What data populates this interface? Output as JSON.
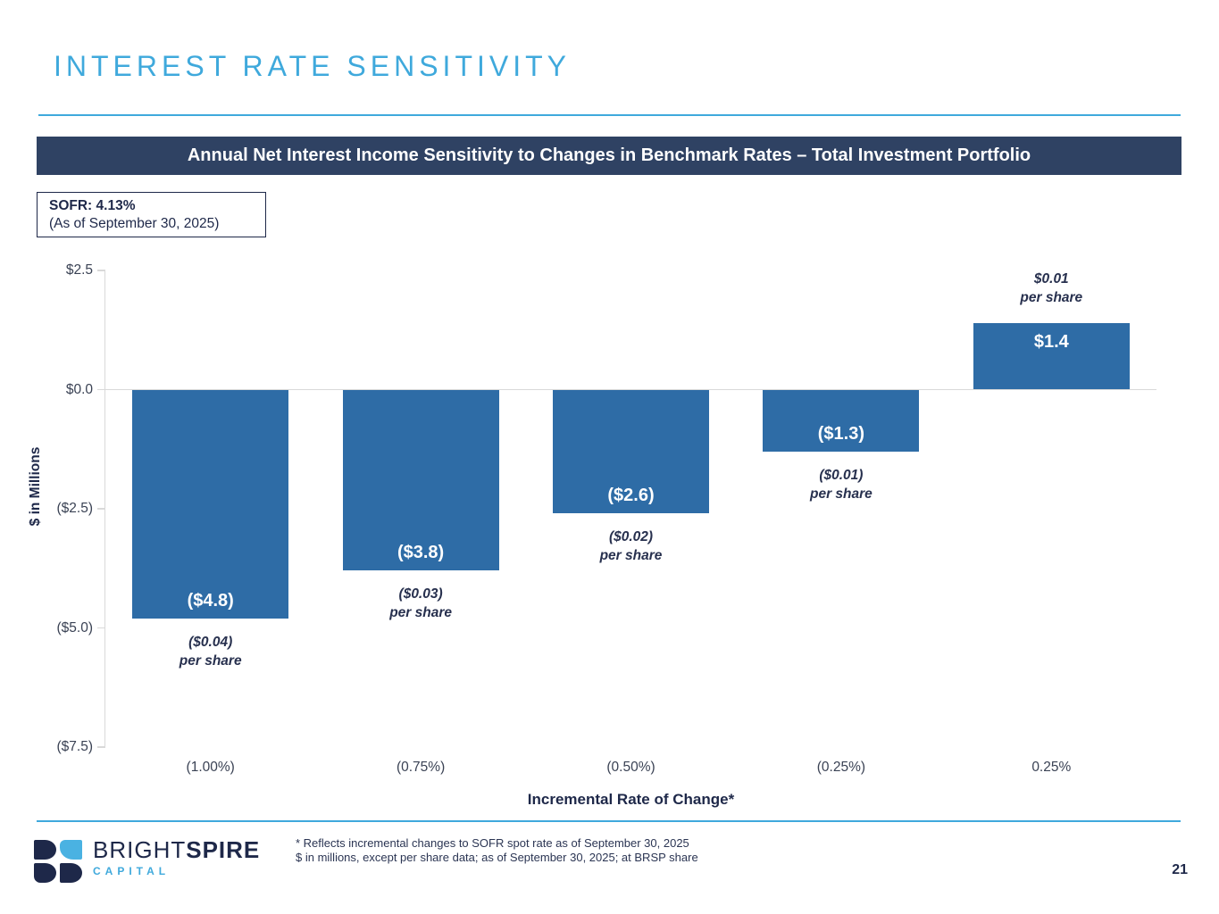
{
  "slide": {
    "title": "INTEREST RATE SENSITIVITY",
    "page_number": "21"
  },
  "banner": {
    "text": "Annual Net Interest Income Sensitivity to Changes in Benchmark Rates – Total Investment Portfolio"
  },
  "sofr_box": {
    "line1": "SOFR: 4.13%",
    "line2": "(As of September 30, 2025)"
  },
  "chart_data": {
    "type": "bar",
    "title": "Annual Net Interest Income Sensitivity to Changes in Benchmark Rates – Total Investment Portfolio",
    "categories": [
      "(1.00%)",
      "(0.75%)",
      "(0.50%)",
      "(0.25%)",
      "0.25%"
    ],
    "values": [
      -4.8,
      -3.8,
      -2.6,
      -1.3,
      1.4
    ],
    "bar_labels": [
      "($4.8)",
      "($3.8)",
      "($2.6)",
      "($1.3)",
      "$1.4"
    ],
    "per_share_labels": [
      {
        "line1": "($0.04)",
        "line2": "per share",
        "position": "below"
      },
      {
        "line1": "($0.03)",
        "line2": "per share",
        "position": "below"
      },
      {
        "line1": "($0.02)",
        "line2": "per share",
        "position": "below"
      },
      {
        "line1": "($0.01)",
        "line2": "per share",
        "position": "below"
      },
      {
        "line1": "$0.01",
        "line2": "per share",
        "position": "above"
      }
    ],
    "xlabel": "Incremental Rate of Change*",
    "ylabel": "$ in Millions",
    "ylim": [
      -7.5,
      2.5
    ],
    "yticks": [
      {
        "label": "$2.5",
        "value": 2.5
      },
      {
        "label": "$0.0",
        "value": 0.0
      },
      {
        "label": "($2.5)",
        "value": -2.5
      },
      {
        "label": "($5.0)",
        "value": -5.0
      },
      {
        "label": "($7.5)",
        "value": -7.5
      }
    ],
    "grid": "zero-line-only",
    "legend": "none",
    "bar_color": "#2E6CA6"
  },
  "footer": {
    "logo": {
      "brand_bright": "BRIGHT",
      "brand_spire": "SPIRE",
      "subtext": "CAPITAL"
    },
    "footnote_line1": "* Reflects incremental changes to SOFR spot rate as of September 30, 2025",
    "footnote_line2": "$ in millions, except per share data; as of September 30, 2025; at BRSP share"
  },
  "colors": {
    "accent_blue": "#3FA9DC",
    "banner_navy": "#2F4263",
    "bar_blue": "#2E6CA6",
    "text_navy": "#1E2849",
    "tick_text": "#3A4254",
    "gridline": "#D9D9D9",
    "logo_blue": "#4AB2E2"
  }
}
